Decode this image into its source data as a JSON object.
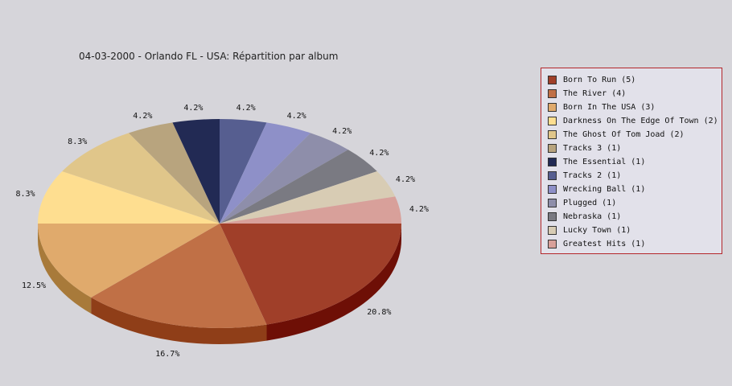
{
  "chart_data": {
    "type": "pie",
    "title": "04-03-2000 - Orlando FL - USA:  Répartition par album",
    "slices": [
      {
        "name": "Born To Run (5)",
        "value": 5,
        "label": "20.8%",
        "color": "#a03f29",
        "side": "#6e0f06"
      },
      {
        "name": "The River (4)",
        "value": 4,
        "label": "16.7%",
        "color": "#c07046",
        "side": "#8f3e18"
      },
      {
        "name": "Born In The USA (3)",
        "value": 3,
        "label": "12.5%",
        "color": "#e0aa6c",
        "side": "#a87a3a"
      },
      {
        "name": "Darkness On The Edge Of Town (2)",
        "value": 2,
        "label": "8.3%",
        "color": "#fede90",
        "side": "#c8a860"
      },
      {
        "name": "The Ghost Of Tom Joad (2)",
        "value": 2,
        "label": "8.3%",
        "color": "#e0c68a",
        "side": "#b09660"
      },
      {
        "name": "Tracks 3 (1)",
        "value": 1,
        "label": "4.2%",
        "color": "#b8a47e",
        "side": "#8a7858"
      },
      {
        "name": "The Essential (1)",
        "value": 1,
        "label": "4.2%",
        "color": "#222a54",
        "side": "#10142e"
      },
      {
        "name": "Tracks 2 (1)",
        "value": 1,
        "label": "4.2%",
        "color": "#565e90",
        "side": "#363c66"
      },
      {
        "name": "Wrecking Ball (1)",
        "value": 1,
        "label": "4.2%",
        "color": "#8e90c8",
        "side": "#60629a"
      },
      {
        "name": "Plugged (1)",
        "value": 1,
        "label": "4.2%",
        "color": "#8e8eaa",
        "side": "#60607c"
      },
      {
        "name": "Nebraska (1)",
        "value": 1,
        "label": "4.2%",
        "color": "#7a7a82",
        "side": "#50505a"
      },
      {
        "name": "Lucky Town (1)",
        "value": 1,
        "label": "4.2%",
        "color": "#d8ccb4",
        "side": "#a89c84"
      },
      {
        "name": "Greatest Hits (1)",
        "value": 1,
        "label": "4.2%",
        "color": "#d8a09a",
        "side": "#a8706a"
      }
    ],
    "legend_position": "right"
  }
}
